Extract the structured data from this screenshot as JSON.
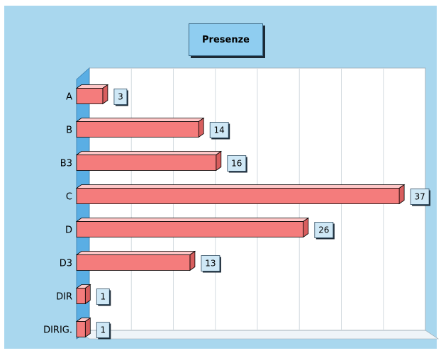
{
  "chart_data": {
    "type": "bar",
    "orientation": "horizontal",
    "title": "Presenze",
    "categories": [
      "A",
      "B",
      "B3",
      "C",
      "D",
      "D3",
      "DIR",
      "DIRIG."
    ],
    "values": [
      3,
      14,
      16,
      37,
      26,
      13,
      1,
      1
    ],
    "xlim": [
      0,
      40
    ],
    "grid": true,
    "legend": "none",
    "data_labels": true,
    "colors": {
      "bar": "#f47c7c",
      "bar_top": "#ffc8c8",
      "bar_side": "#d85e5e",
      "background": "#a9d7ee",
      "plot": "#ffffff",
      "wall": "#5aaee4",
      "label_box": "#cfe8f6"
    }
  }
}
